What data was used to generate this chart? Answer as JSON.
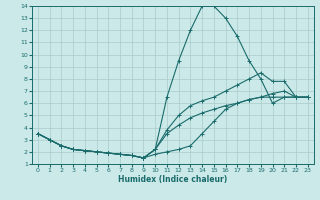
{
  "xlabel": "Humidex (Indice chaleur)",
  "bg_color": "#cce9e9",
  "grid_color": "#aacccc",
  "line_color": "#1a6b6b",
  "xlim": [
    -0.5,
    23.5
  ],
  "ylim": [
    1,
    14
  ],
  "xticks": [
    0,
    1,
    2,
    3,
    4,
    5,
    6,
    7,
    8,
    9,
    10,
    11,
    12,
    13,
    14,
    15,
    16,
    17,
    18,
    19,
    20,
    21,
    22,
    23
  ],
  "yticks": [
    1,
    2,
    3,
    4,
    5,
    6,
    7,
    8,
    9,
    10,
    11,
    12,
    13,
    14
  ],
  "lines": [
    {
      "x": [
        0,
        1,
        2,
        3,
        4,
        5,
        6,
        7,
        8,
        9,
        10,
        11,
        12,
        13,
        14,
        15,
        16,
        17,
        18,
        19,
        20,
        21,
        22,
        23
      ],
      "y": [
        3.5,
        3.0,
        2.5,
        2.2,
        2.1,
        2.0,
        1.9,
        1.8,
        1.7,
        1.5,
        2.2,
        6.5,
        9.5,
        12.0,
        14.0,
        14.0,
        13.0,
        11.5,
        9.5,
        8.0,
        6.0,
        6.5,
        6.5,
        6.5
      ]
    },
    {
      "x": [
        0,
        1,
        2,
        3,
        4,
        5,
        6,
        7,
        8,
        9,
        10,
        11,
        12,
        13,
        14,
        15,
        16,
        17,
        18,
        19,
        20,
        21,
        22,
        23
      ],
      "y": [
        3.5,
        3.0,
        2.5,
        2.2,
        2.1,
        2.0,
        1.9,
        1.8,
        1.7,
        1.5,
        2.2,
        3.8,
        5.0,
        5.8,
        6.2,
        6.5,
        7.0,
        7.5,
        8.0,
        8.5,
        7.8,
        7.8,
        6.5,
        6.5
      ]
    },
    {
      "x": [
        0,
        1,
        2,
        3,
        4,
        5,
        6,
        7,
        8,
        9,
        10,
        11,
        12,
        13,
        14,
        15,
        16,
        17,
        18,
        19,
        20,
        21,
        22,
        23
      ],
      "y": [
        3.5,
        3.0,
        2.5,
        2.2,
        2.1,
        2.0,
        1.9,
        1.8,
        1.7,
        1.5,
        2.2,
        3.5,
        4.2,
        4.8,
        5.2,
        5.5,
        5.8,
        6.0,
        6.3,
        6.5,
        6.8,
        7.0,
        6.5,
        6.5
      ]
    },
    {
      "x": [
        0,
        1,
        2,
        3,
        4,
        5,
        6,
        7,
        8,
        9,
        10,
        11,
        12,
        13,
        14,
        15,
        16,
        17,
        18,
        19,
        20,
        21,
        22,
        23
      ],
      "y": [
        3.5,
        3.0,
        2.5,
        2.2,
        2.1,
        2.0,
        1.9,
        1.8,
        1.7,
        1.5,
        1.8,
        2.0,
        2.2,
        2.5,
        3.5,
        4.5,
        5.5,
        6.0,
        6.3,
        6.5,
        6.5,
        6.5,
        6.5,
        6.5
      ]
    }
  ]
}
